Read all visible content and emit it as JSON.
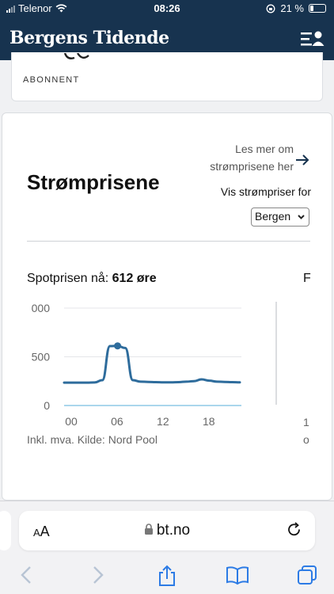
{
  "status": {
    "carrier": "Telenor",
    "time": "08:26",
    "battery": "21 %"
  },
  "header": {
    "logo": "Bergens Tidende",
    "logo_icon": "crest-icon",
    "menu_icon": "user-menu-icon"
  },
  "top_card": {
    "label": "ABONNENT"
  },
  "card": {
    "title": "Strømprisene",
    "read_more": "Les mer om strømprisene her",
    "vis_label": "Vis strømpriser for",
    "region": "Bergen",
    "spot_label": "Spotprisen nå:",
    "spot_value": "612 øre",
    "spot_cut": "F",
    "source": "Inkl. mva. Kilde: Nord Pool",
    "cut_a": "1",
    "cut_b": "o"
  },
  "chart_data": {
    "type": "line",
    "x_ticks": [
      "00",
      "06",
      "12",
      "18"
    ],
    "y_ticks": [
      "000",
      "500",
      "0"
    ],
    "ylim": [
      0,
      1000
    ],
    "xlim": [
      0,
      23
    ],
    "grid": true,
    "current_hour": 7,
    "series": [
      {
        "x": [
          0,
          1,
          2,
          3,
          4,
          5,
          6,
          7,
          8,
          9,
          10,
          11,
          12,
          13,
          14,
          15,
          16,
          17,
          18,
          19,
          20,
          21,
          22,
          23
        ],
        "values": [
          235,
          235,
          235,
          235,
          237,
          260,
          610,
          612,
          590,
          260,
          245,
          242,
          240,
          238,
          238,
          240,
          245,
          250,
          268,
          255,
          245,
          242,
          240,
          238
        ]
      }
    ],
    "colors": {
      "line": "#2e6c9c",
      "baseline": "#8ec9e6"
    }
  },
  "browser": {
    "url": "bt.no",
    "text_size": "AA"
  }
}
